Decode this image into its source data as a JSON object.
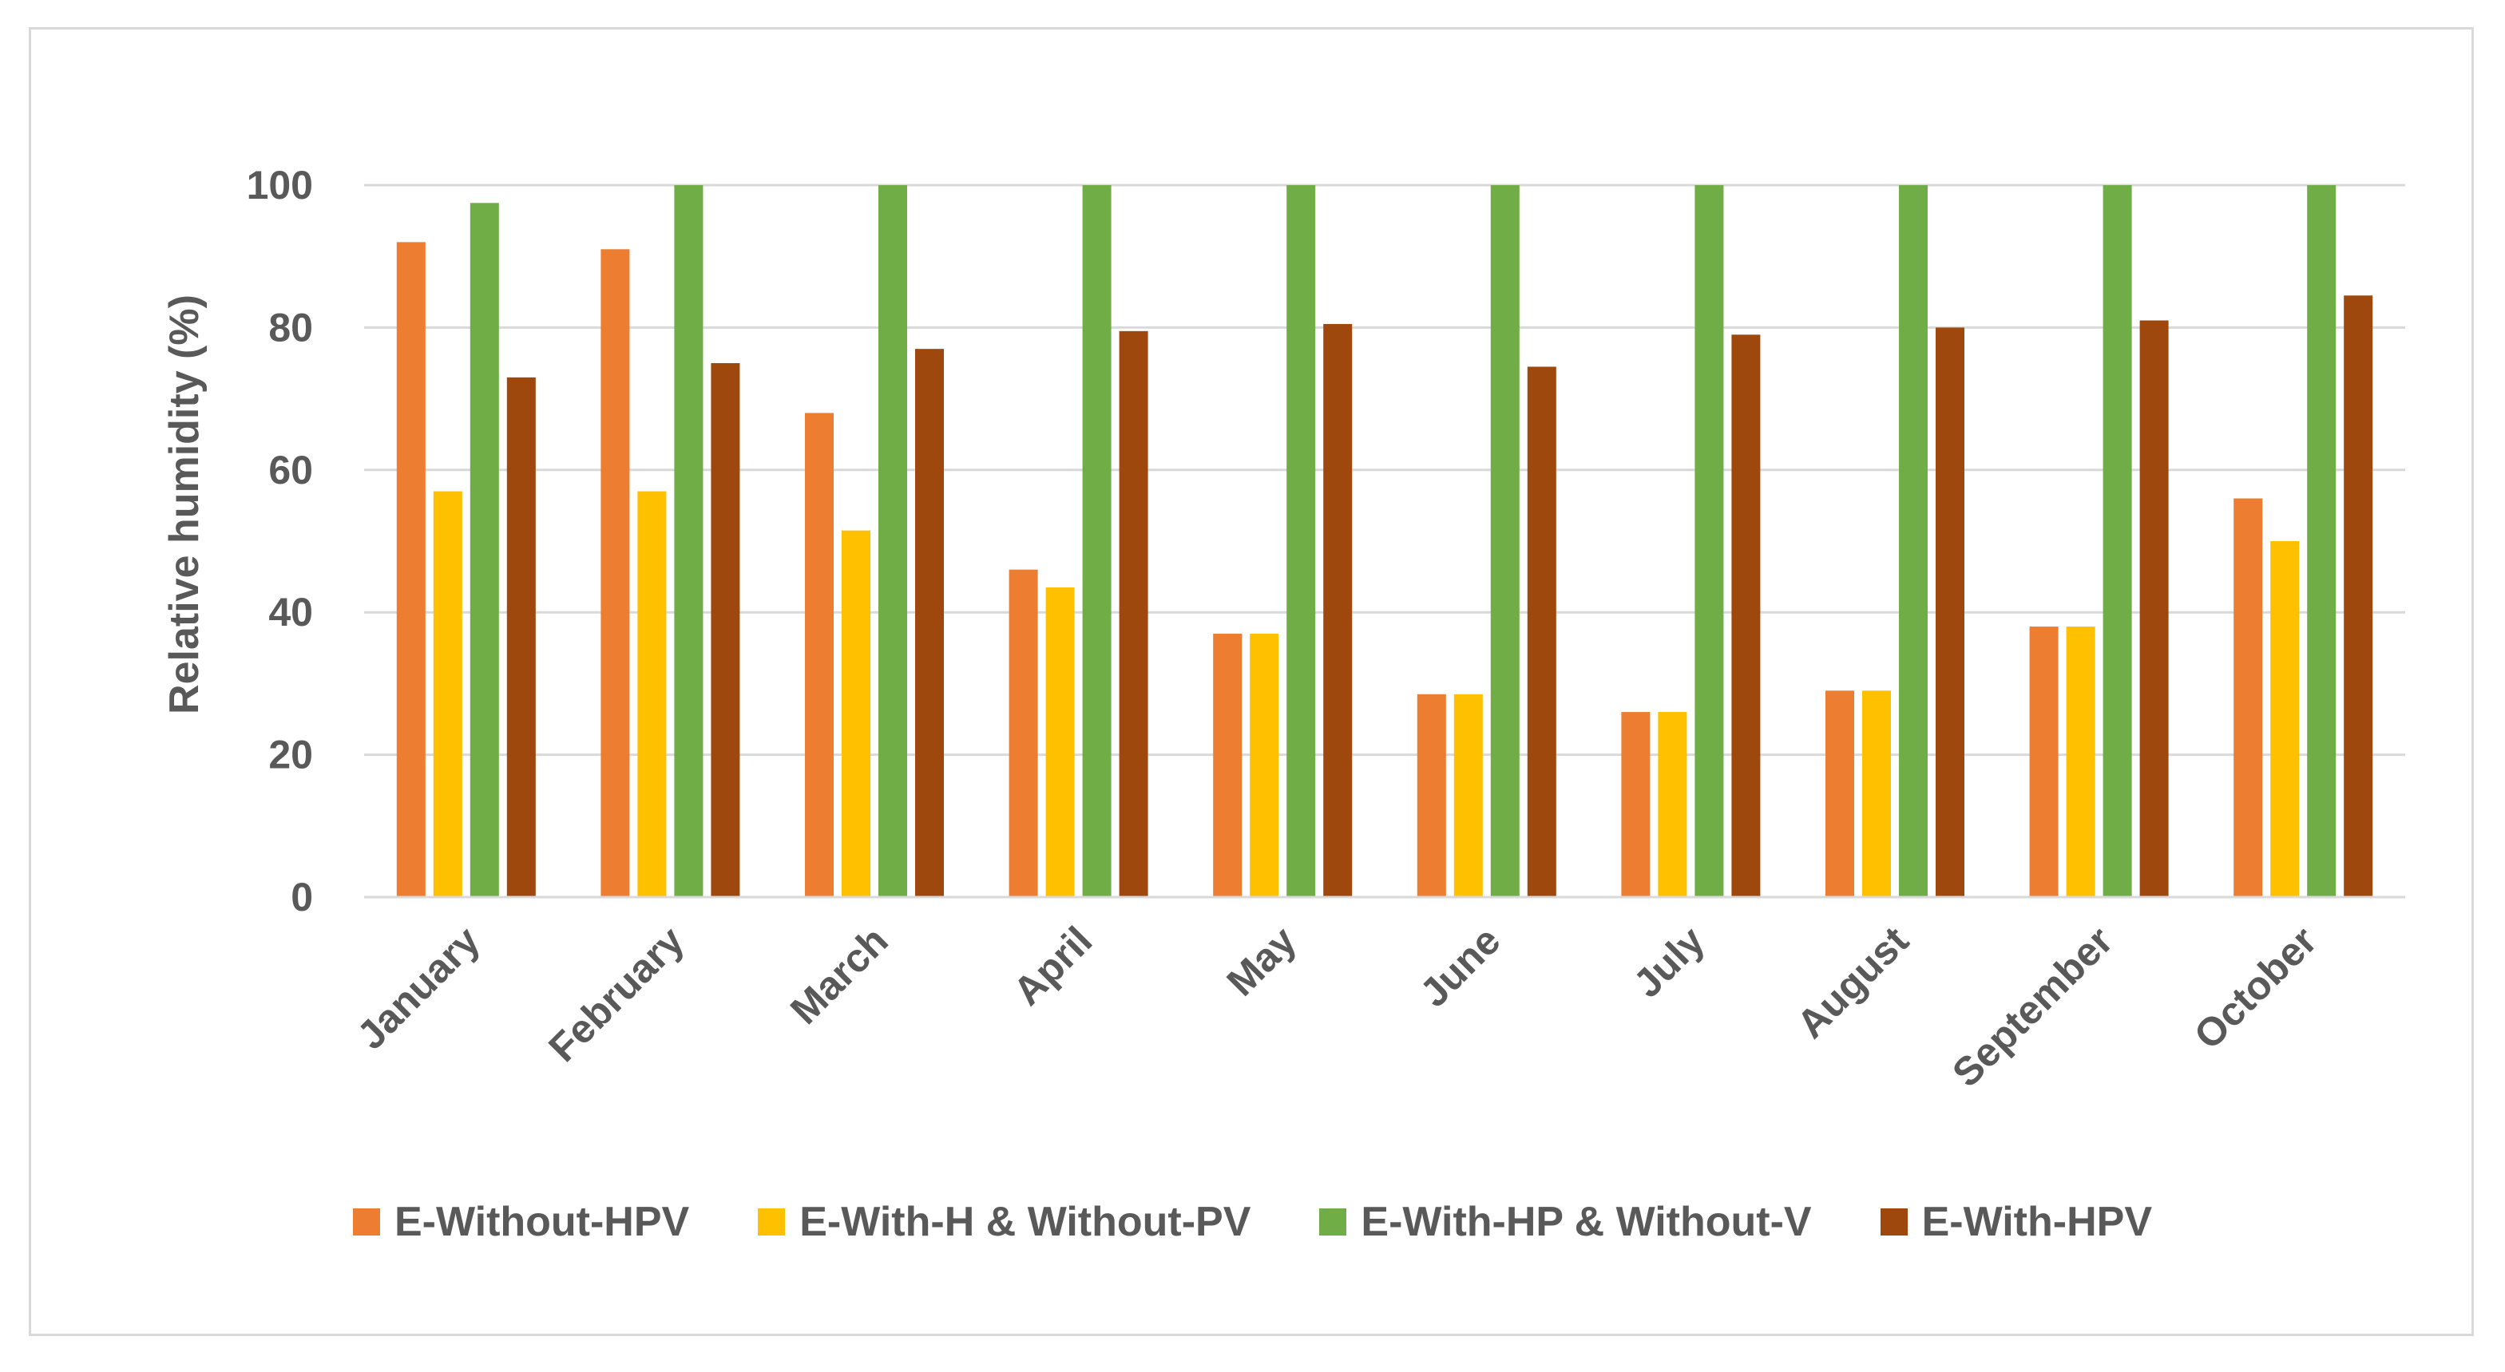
{
  "chart_data": {
    "type": "bar",
    "title": "",
    "xlabel": "",
    "ylabel": "Relative humidity (%)",
    "ylim": [
      0,
      100
    ],
    "yticks": [
      0,
      20,
      40,
      60,
      80,
      100
    ],
    "grid": true,
    "legend_position": "bottom",
    "categories": [
      "January",
      "February",
      "March",
      "April",
      "May",
      "June",
      "July",
      "August",
      "September",
      "October"
    ],
    "series": [
      {
        "name": "E-Without-HPV",
        "color": "#ED7D31",
        "values": [
          92,
          91,
          68,
          46,
          37,
          28.5,
          26,
          29,
          38,
          56
        ]
      },
      {
        "name": "E-With-H & Without-PV",
        "color": "#FFC000",
        "values": [
          57,
          57,
          51.5,
          43.5,
          37,
          28.5,
          26,
          29,
          38,
          50
        ]
      },
      {
        "name": "E-With-HP & Without-V",
        "color": "#70AD47",
        "values": [
          97.5,
          100,
          100,
          100,
          100,
          100,
          100,
          100,
          100,
          100
        ]
      },
      {
        "name": "E-With-HPV",
        "color": "#9E480E",
        "values": [
          73,
          75,
          77,
          79.5,
          80.5,
          74.5,
          79,
          80,
          81,
          84.5
        ]
      }
    ]
  }
}
